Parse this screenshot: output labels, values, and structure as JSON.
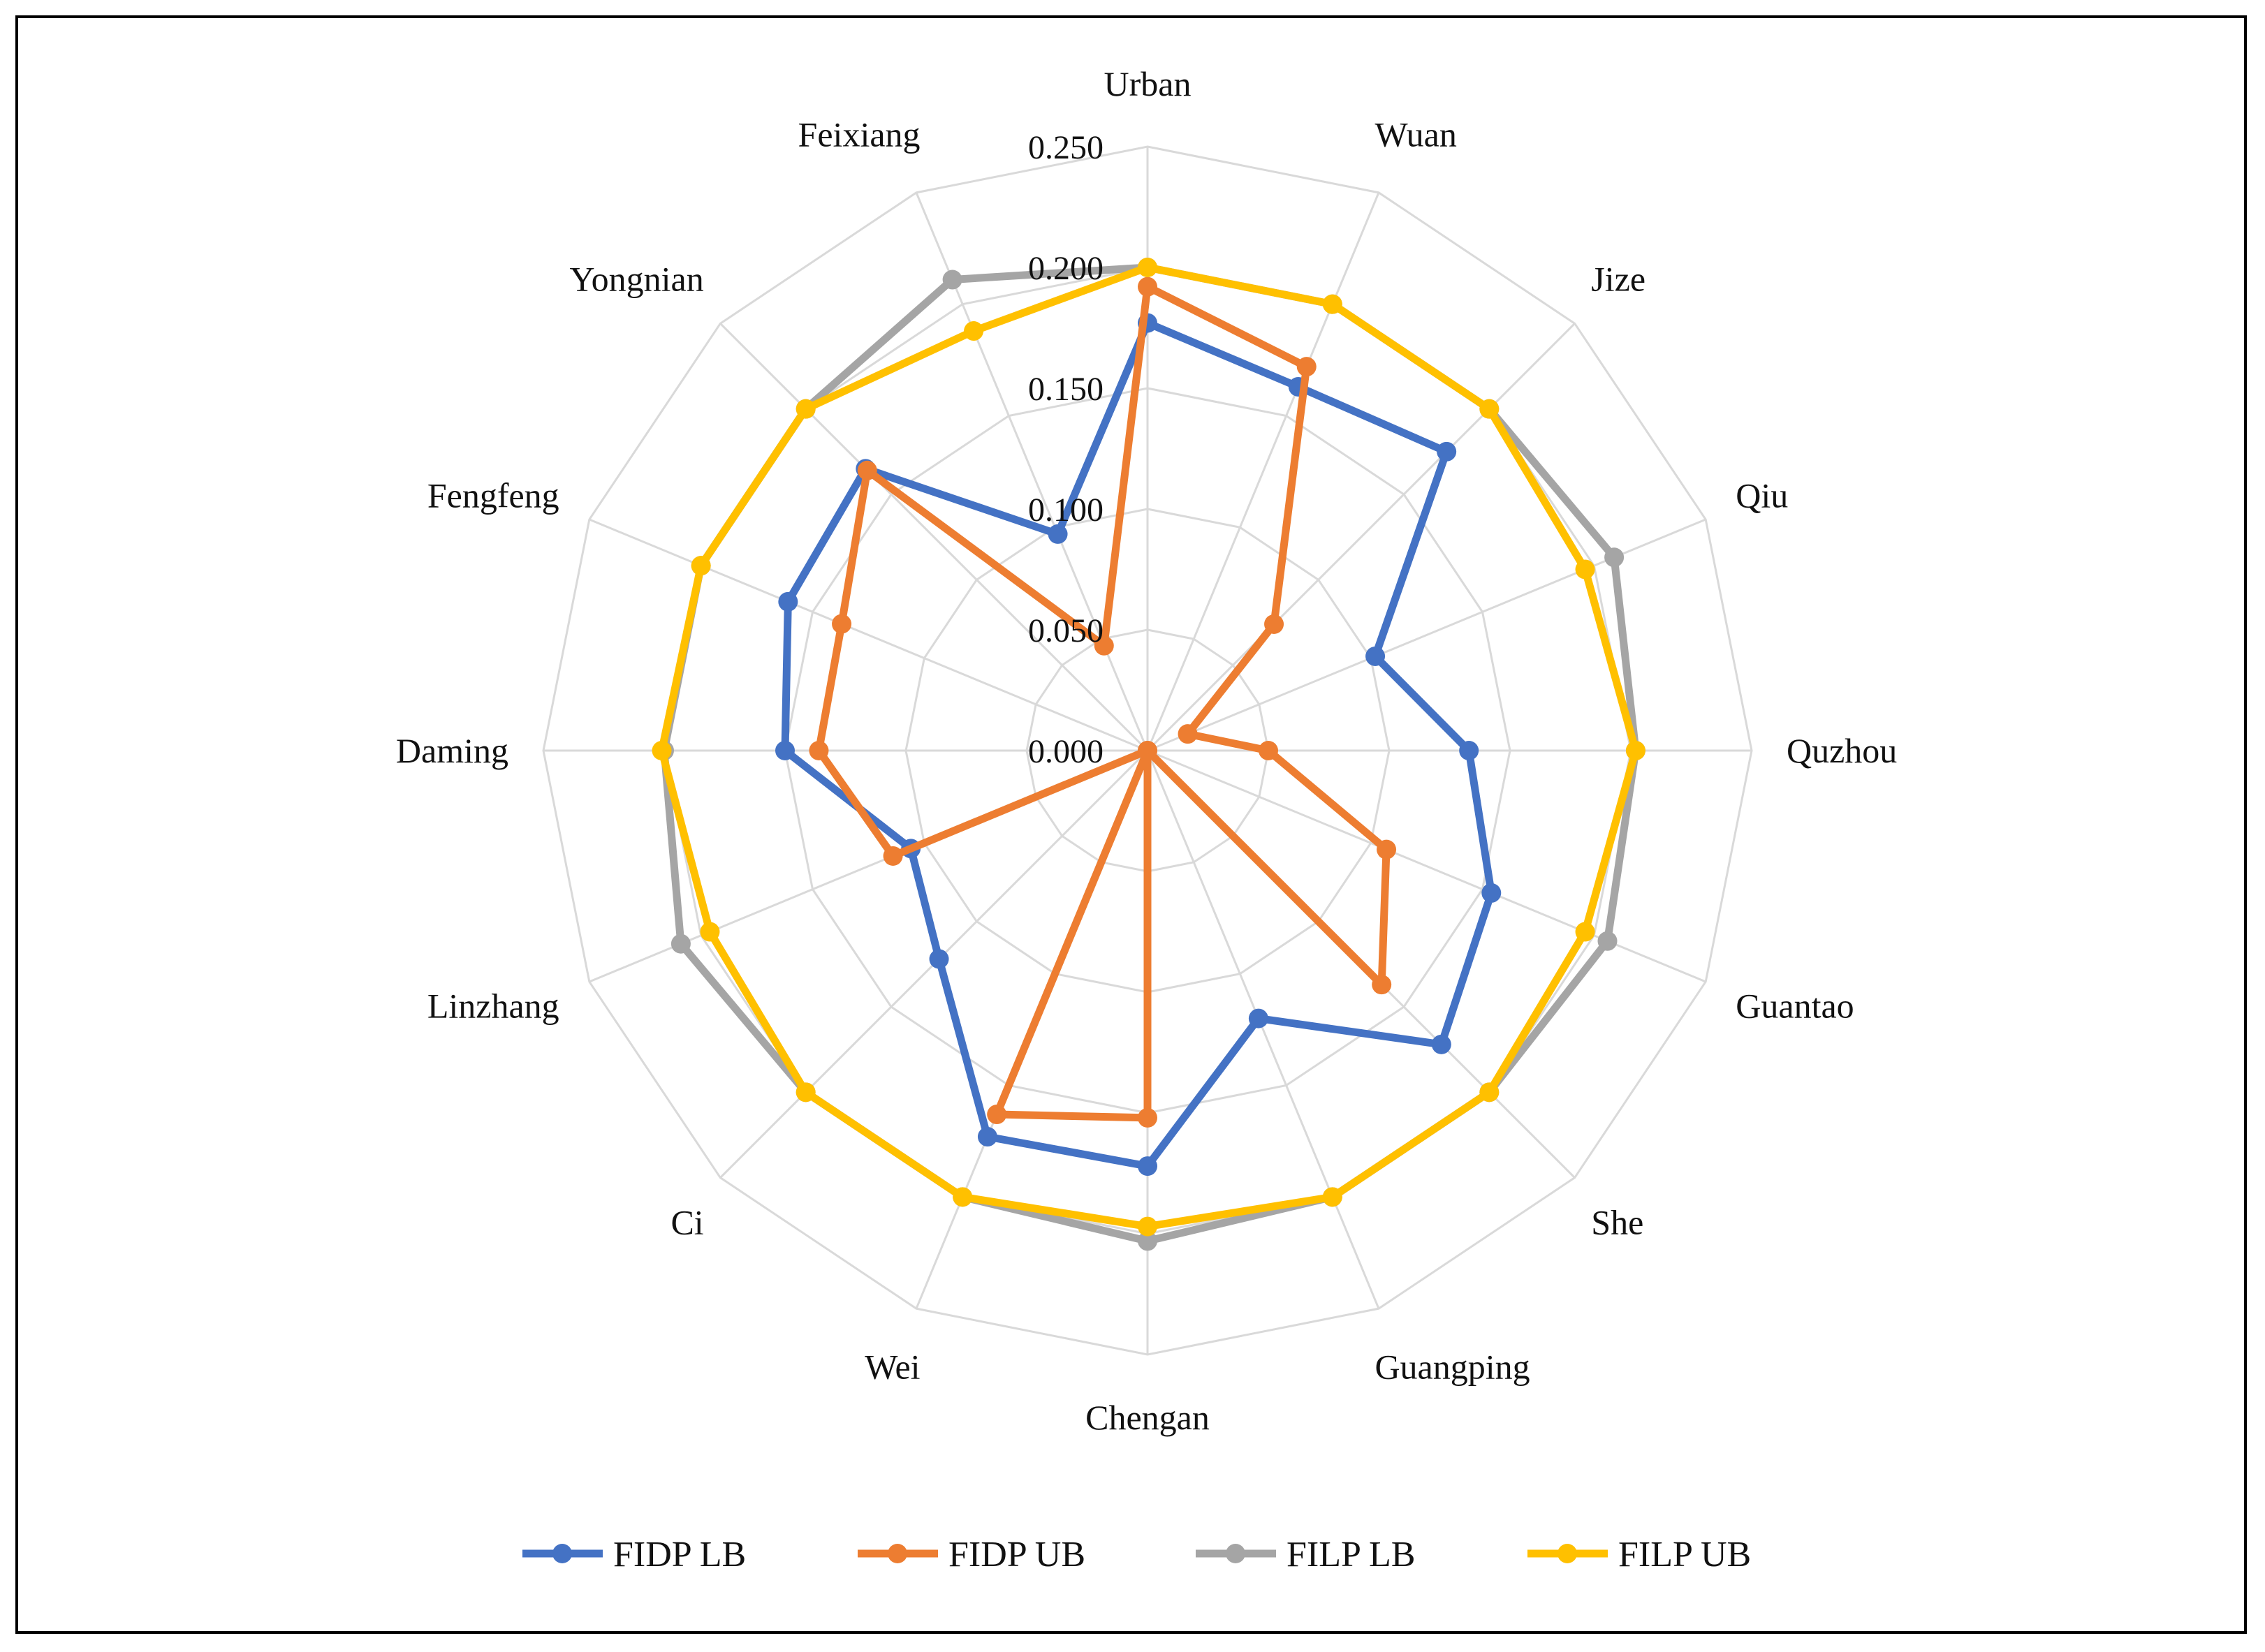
{
  "chart_data": {
    "type": "radar",
    "categories": [
      "Urban",
      "Wuan",
      "Jize",
      "Qiu",
      "Quzhou",
      "Guantao",
      "She",
      "Guangping",
      "Chengan",
      "Wei",
      "Ci",
      "Linzhang",
      "Daming",
      "Fengfeng",
      "Yongnian",
      "Feixiang"
    ],
    "rlim": [
      0,
      0.25
    ],
    "ticks": [
      "0.000",
      "0.050",
      "0.100",
      "0.150",
      "0.200",
      "0.250"
    ],
    "tick_values": [
      0,
      0.05,
      0.1,
      0.15,
      0.2,
      0.25
    ],
    "grid": true,
    "legend_position": "bottom",
    "series": [
      {
        "name": "FIDP LB",
        "color": "#4472C4",
        "values": [
          0.177,
          0.163,
          0.175,
          0.102,
          0.133,
          0.154,
          0.172,
          0.12,
          0.172,
          0.173,
          0.122,
          0.106,
          0.15,
          0.161,
          0.165,
          0.097
        ]
      },
      {
        "name": "FIDP UB",
        "color": "#ED7D31",
        "values": [
          0.192,
          0.172,
          0.074,
          0.018,
          0.05,
          0.107,
          0.137,
          0.0,
          0.152,
          0.163,
          0.0,
          0.114,
          0.136,
          0.137,
          0.164,
          0.047
        ]
      },
      {
        "name": "FILP LB",
        "color": "#A5A5A5",
        "values": [
          0.2,
          0.2,
          0.2,
          0.209,
          0.202,
          0.206,
          0.2,
          0.2,
          0.203,
          0.2,
          0.2,
          0.209,
          0.2,
          0.2,
          0.2,
          0.211
        ]
      },
      {
        "name": "FILP UB",
        "color": "#FFC000",
        "values": [
          0.2,
          0.2,
          0.2,
          0.196,
          0.202,
          0.196,
          0.2,
          0.2,
          0.197,
          0.2,
          0.2,
          0.196,
          0.201,
          0.2,
          0.2,
          0.188
        ]
      }
    ]
  }
}
